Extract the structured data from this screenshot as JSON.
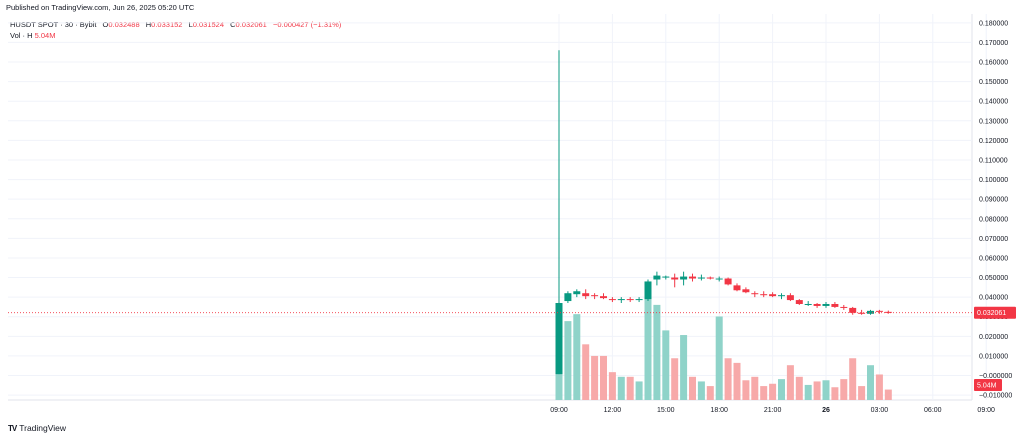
{
  "header": {
    "published": "Published on TradingView.com, Jun 26, 2025 05:20 UTC"
  },
  "legend": {
    "symbol": "HUSDT SPOT · 30 · Bybit",
    "open_label": "O",
    "open": "0.032488",
    "high_label": "H",
    "high": "0.033152",
    "low_label": "L",
    "low": "0.031524",
    "close_label": "C",
    "close": "0.032061",
    "change": "−0.000427 (−1.31%)"
  },
  "volume_legend": {
    "label": "Vol · H",
    "value": "5.04M"
  },
  "footer": {
    "brand": "TradingView"
  },
  "colors": {
    "up": "#089981",
    "down": "#f23645",
    "up_vol": "#8fd3c9",
    "down_vol": "#f7a9a9"
  },
  "chart_data": {
    "type": "candlestick",
    "price_axis": {
      "ticks": [
        -0.01,
        0,
        0.01,
        0.02,
        0.03,
        0.04,
        0.05,
        0.06,
        0.07,
        0.08,
        0.09,
        0.1,
        0.11,
        0.12,
        0.13,
        0.14,
        0.15,
        0.16,
        0.17,
        0.18
      ],
      "tick_labels": [
        "−0.010000",
        "−0.000000",
        "0.010000",
        "0.020000",
        "0.030000",
        "0.040000",
        "0.050000",
        "0.060000",
        "0.070000",
        "0.080000",
        "0.090000",
        "0.100000",
        "0.110000",
        "0.120000",
        "0.130000",
        "0.140000",
        "0.150000",
        "0.160000",
        "0.170000",
        "0.180000"
      ],
      "range": [
        -0.0125,
        0.1845
      ]
    },
    "time_axis": {
      "labels": [
        "09:00",
        "12:00",
        "15:00",
        "18:00",
        "21:00",
        "26",
        "03:00",
        "06:00",
        "09:00"
      ],
      "bold": [
        false,
        false,
        false,
        false,
        false,
        true,
        false,
        false,
        false
      ]
    },
    "last_price": 0.032061,
    "last_price_label": "0.032061",
    "volume_label": "5.04M",
    "candles": [
      {
        "o": 0.0007,
        "h": 0.166,
        "l": 0.0007,
        "c": 0.037
      },
      {
        "o": 0.038,
        "h": 0.043,
        "l": 0.037,
        "c": 0.042
      },
      {
        "o": 0.0415,
        "h": 0.044,
        "l": 0.04,
        "c": 0.043
      },
      {
        "o": 0.042,
        "h": 0.044,
        "l": 0.039,
        "c": 0.0405
      },
      {
        "o": 0.041,
        "h": 0.042,
        "l": 0.039,
        "c": 0.0405
      },
      {
        "o": 0.0405,
        "h": 0.042,
        "l": 0.039,
        "c": 0.0395
      },
      {
        "o": 0.039,
        "h": 0.04,
        "l": 0.0375,
        "c": 0.0385
      },
      {
        "o": 0.0385,
        "h": 0.04,
        "l": 0.037,
        "c": 0.039
      },
      {
        "o": 0.039,
        "h": 0.04,
        "l": 0.0375,
        "c": 0.0388
      },
      {
        "o": 0.0385,
        "h": 0.04,
        "l": 0.0375,
        "c": 0.039
      },
      {
        "o": 0.039,
        "h": 0.049,
        "l": 0.038,
        "c": 0.048
      },
      {
        "o": 0.049,
        "h": 0.053,
        "l": 0.046,
        "c": 0.051
      },
      {
        "o": 0.0505,
        "h": 0.051,
        "l": 0.049,
        "c": 0.0505
      },
      {
        "o": 0.05,
        "h": 0.052,
        "l": 0.045,
        "c": 0.049
      },
      {
        "o": 0.049,
        "h": 0.053,
        "l": 0.046,
        "c": 0.0505
      },
      {
        "o": 0.0505,
        "h": 0.052,
        "l": 0.048,
        "c": 0.0495
      },
      {
        "o": 0.0495,
        "h": 0.0515,
        "l": 0.0485,
        "c": 0.05
      },
      {
        "o": 0.05,
        "h": 0.0505,
        "l": 0.049,
        "c": 0.0495
      },
      {
        "o": 0.049,
        "h": 0.0505,
        "l": 0.048,
        "c": 0.0495
      },
      {
        "o": 0.0495,
        "h": 0.05,
        "l": 0.046,
        "c": 0.0465
      },
      {
        "o": 0.046,
        "h": 0.047,
        "l": 0.043,
        "c": 0.0435
      },
      {
        "o": 0.044,
        "h": 0.045,
        "l": 0.042,
        "c": 0.0425
      },
      {
        "o": 0.042,
        "h": 0.043,
        "l": 0.04,
        "c": 0.0415
      },
      {
        "o": 0.0415,
        "h": 0.043,
        "l": 0.04,
        "c": 0.041
      },
      {
        "o": 0.0415,
        "h": 0.0425,
        "l": 0.04,
        "c": 0.0405
      },
      {
        "o": 0.0405,
        "h": 0.042,
        "l": 0.039,
        "c": 0.041
      },
      {
        "o": 0.041,
        "h": 0.042,
        "l": 0.038,
        "c": 0.0385
      },
      {
        "o": 0.0385,
        "h": 0.039,
        "l": 0.036,
        "c": 0.0365
      },
      {
        "o": 0.0365,
        "h": 0.038,
        "l": 0.0355,
        "c": 0.0365
      },
      {
        "o": 0.0365,
        "h": 0.037,
        "l": 0.0345,
        "c": 0.0355
      },
      {
        "o": 0.0355,
        "h": 0.0375,
        "l": 0.0345,
        "c": 0.0365
      },
      {
        "o": 0.0365,
        "h": 0.0375,
        "l": 0.0345,
        "c": 0.035
      },
      {
        "o": 0.035,
        "h": 0.036,
        "l": 0.0335,
        "c": 0.0345
      },
      {
        "o": 0.0345,
        "h": 0.035,
        "l": 0.031,
        "c": 0.032
      },
      {
        "o": 0.032,
        "h": 0.0335,
        "l": 0.031,
        "c": 0.0315
      },
      {
        "o": 0.0315,
        "h": 0.0335,
        "l": 0.031,
        "c": 0.033
      },
      {
        "o": 0.033,
        "h": 0.0335,
        "l": 0.0315,
        "c": 0.0325
      },
      {
        "o": 0.032488,
        "h": 0.033152,
        "l": 0.031524,
        "c": 0.032061
      }
    ],
    "volumes": [
      0.145,
      0.34,
      0.37,
      0.24,
      0.19,
      0.19,
      0.12,
      0.1,
      0.1,
      0.08,
      0.49,
      0.41,
      0.3,
      0.18,
      0.28,
      0.1,
      0.08,
      0.06,
      0.36,
      0.18,
      0.16,
      0.085,
      0.1,
      0.06,
      0.07,
      0.09,
      0.15,
      0.1,
      0.065,
      0.08,
      0.085,
      0.055,
      0.09,
      0.18,
      0.06,
      0.15,
      0.11,
      0.045
    ]
  }
}
